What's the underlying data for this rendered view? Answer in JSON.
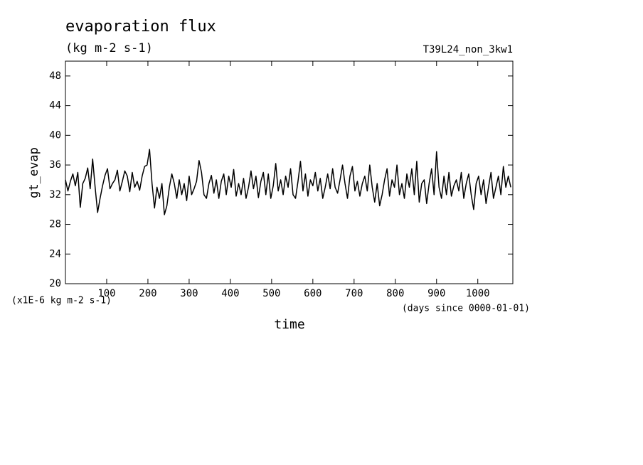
{
  "chart_data": {
    "type": "line",
    "title": "evaporation flux",
    "subtitle": "(kg m-2 s-1)",
    "annotation": "T39L24_non_3kw1",
    "y_label": "gt_evap",
    "y_units": "(x1E-6 kg m-2 s-1)",
    "x_label": "time",
    "x_units": "(days since 0000-01-01)",
    "xlim": [
      0,
      1085
    ],
    "xticks": [
      100,
      200,
      300,
      400,
      500,
      600,
      700,
      800,
      900,
      1000
    ],
    "ylim": [
      20,
      50
    ],
    "yticks": [
      20,
      24,
      28,
      32,
      36,
      40,
      44,
      48
    ],
    "grid": false,
    "series": [
      {
        "color": "#000000",
        "x": [
          0,
          6,
          12,
          18,
          24,
          30,
          36,
          42,
          48,
          54,
          60,
          66,
          72,
          78,
          84,
          90,
          96,
          102,
          108,
          114,
          120,
          126,
          132,
          138,
          144,
          150,
          156,
          162,
          168,
          174,
          180,
          186,
          192,
          198,
          204,
          210,
          216,
          222,
          228,
          234,
          240,
          246,
          252,
          258,
          264,
          270,
          276,
          282,
          288,
          294,
          300,
          306,
          312,
          318,
          324,
          330,
          336,
          342,
          348,
          354,
          360,
          366,
          372,
          378,
          384,
          390,
          396,
          402,
          408,
          414,
          420,
          426,
          432,
          438,
          444,
          450,
          456,
          462,
          468,
          474,
          480,
          486,
          492,
          498,
          504,
          510,
          516,
          522,
          528,
          534,
          540,
          546,
          552,
          558,
          564,
          570,
          576,
          582,
          588,
          594,
          600,
          606,
          612,
          618,
          624,
          630,
          636,
          642,
          648,
          654,
          660,
          666,
          672,
          678,
          684,
          690,
          696,
          702,
          708,
          714,
          720,
          726,
          732,
          738,
          744,
          750,
          756,
          762,
          768,
          774,
          780,
          786,
          792,
          798,
          804,
          810,
          816,
          822,
          828,
          834,
          840,
          846,
          852,
          858,
          864,
          870,
          876,
          882,
          888,
          894,
          900,
          906,
          912,
          918,
          924,
          930,
          936,
          942,
          948,
          954,
          960,
          966,
          972,
          978,
          984,
          990,
          996,
          1002,
          1008,
          1014,
          1020,
          1026,
          1032,
          1038,
          1044,
          1050,
          1056,
          1062,
          1068,
          1074,
          1080
        ],
        "values": [
          34.0,
          32.5,
          33.8,
          34.8,
          33.2,
          35.0,
          30.3,
          33.5,
          34.2,
          35.6,
          32.8,
          36.8,
          33.0,
          29.6,
          31.5,
          33.2,
          34.6,
          35.5,
          32.8,
          33.5,
          34.0,
          35.3,
          32.5,
          33.8,
          35.2,
          34.5,
          32.4,
          35.0,
          33.0,
          33.8,
          32.6,
          34.5,
          35.8,
          36.0,
          38.1,
          33.5,
          30.2,
          33.0,
          31.5,
          33.5,
          29.3,
          30.5,
          33.0,
          34.8,
          33.5,
          31.5,
          34.0,
          32.0,
          33.5,
          31.2,
          34.5,
          32.0,
          32.8,
          33.8,
          36.6,
          35.0,
          32.0,
          31.5,
          33.5,
          34.6,
          32.2,
          34.0,
          31.5,
          33.8,
          34.8,
          32.0,
          34.5,
          33.0,
          35.4,
          31.8,
          33.5,
          32.0,
          34.2,
          31.5,
          33.0,
          35.2,
          32.8,
          34.5,
          31.6,
          33.8,
          35.0,
          32.0,
          34.8,
          31.5,
          33.2,
          36.2,
          32.5,
          34.0,
          32.0,
          34.5,
          33.0,
          35.5,
          32.0,
          31.5,
          33.8,
          36.5,
          32.5,
          34.8,
          31.8,
          34.0,
          33.2,
          35.0,
          32.5,
          34.2,
          31.5,
          33.0,
          34.8,
          32.8,
          35.5,
          33.0,
          32.2,
          34.0,
          36.0,
          33.5,
          31.5,
          34.5,
          35.8,
          32.5,
          33.8,
          31.8,
          33.5,
          34.5,
          32.5,
          36.0,
          33.0,
          31.0,
          33.5,
          30.5,
          32.0,
          34.0,
          35.5,
          31.8,
          34.0,
          33.0,
          36.0,
          32.0,
          33.5,
          31.5,
          34.8,
          33.0,
          35.5,
          32.0,
          36.5,
          31.0,
          33.5,
          34.0,
          30.8,
          33.5,
          35.5,
          32.0,
          37.8,
          33.0,
          31.5,
          34.5,
          32.0,
          35.0,
          31.8,
          33.2,
          34.0,
          32.5,
          35.0,
          31.5,
          33.5,
          34.8,
          32.0,
          30.0,
          33.5,
          34.5,
          32.0,
          34.0,
          30.8,
          33.0,
          35.0,
          31.5,
          33.0,
          34.5,
          32.0,
          35.8,
          33.0,
          34.5,
          33.0
        ]
      }
    ]
  }
}
